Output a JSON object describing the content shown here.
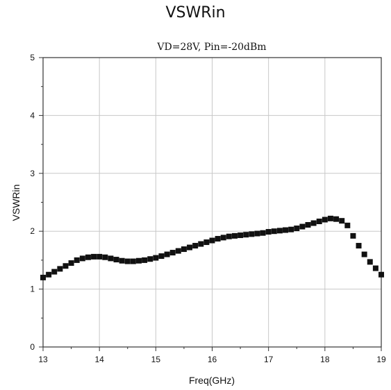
{
  "heading": "VSWRin",
  "chart_data": {
    "type": "scatter",
    "title": "VD=28V, Pin=-20dBm",
    "xlabel": "Freq(GHz)",
    "ylabel": "VSWRin",
    "xlim": [
      13,
      19
    ],
    "ylim": [
      0,
      5
    ],
    "xticks": [
      13,
      14,
      15,
      16,
      17,
      18,
      19
    ],
    "yticks": [
      0,
      1,
      2,
      3,
      4,
      5
    ],
    "grid": true,
    "marker": "square",
    "marker_color": "#111111",
    "series": [
      {
        "x": [
          13.0,
          13.1,
          13.2,
          13.3,
          13.4,
          13.5,
          13.6,
          13.7,
          13.8,
          13.9,
          14.0,
          14.1,
          14.2,
          14.3,
          14.4,
          14.5,
          14.6,
          14.7,
          14.8,
          14.9,
          15.0,
          15.1,
          15.2,
          15.3,
          15.4,
          15.5,
          15.6,
          15.7,
          15.8,
          15.9,
          16.0,
          16.1,
          16.2,
          16.3,
          16.4,
          16.5,
          16.6,
          16.7,
          16.8,
          16.9,
          17.0,
          17.1,
          17.2,
          17.3,
          17.4,
          17.5,
          17.6,
          17.7,
          17.8,
          17.9,
          18.0,
          18.1,
          18.2,
          18.3,
          18.4,
          18.5,
          18.6,
          18.7,
          18.8,
          18.9,
          19.0
        ],
        "y": [
          1.2,
          1.25,
          1.3,
          1.35,
          1.4,
          1.45,
          1.5,
          1.53,
          1.55,
          1.56,
          1.56,
          1.55,
          1.53,
          1.51,
          1.49,
          1.48,
          1.48,
          1.49,
          1.5,
          1.52,
          1.54,
          1.57,
          1.6,
          1.63,
          1.66,
          1.69,
          1.72,
          1.75,
          1.78,
          1.81,
          1.84,
          1.87,
          1.89,
          1.91,
          1.92,
          1.93,
          1.94,
          1.95,
          1.96,
          1.97,
          1.99,
          2.0,
          2.01,
          2.02,
          2.03,
          2.05,
          2.08,
          2.11,
          2.14,
          2.17,
          2.2,
          2.22,
          2.21,
          2.18,
          2.1,
          1.92,
          1.75,
          1.6,
          1.47,
          1.36,
          1.25
        ]
      }
    ]
  }
}
